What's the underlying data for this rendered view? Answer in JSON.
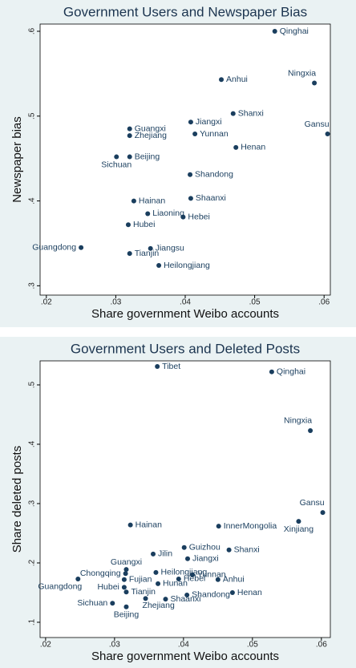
{
  "chart_data": [
    {
      "type": "scatter",
      "title": "Government Users and Newspaper Bias",
      "x_label": "Share government Weibo accounts",
      "y_label": "Newspaper bias",
      "color": "#1a3e5e",
      "xlim": [
        0.0191,
        0.0609
      ],
      "ylim": [
        0.289,
        0.6085
      ],
      "xticks": [
        {
          "value": 0.02,
          "label": ".02"
        },
        {
          "value": 0.03,
          "label": ".03"
        },
        {
          "value": 0.04,
          "label": ".04"
        },
        {
          "value": 0.05,
          "label": ".05"
        },
        {
          "value": 0.06,
          "label": ".06"
        }
      ],
      "yticks": [
        {
          "value": 0.3,
          "label": ".3"
        },
        {
          "value": 0.4,
          "label": ".4"
        },
        {
          "value": 0.5,
          "label": ".5"
        },
        {
          "value": 0.6,
          "label": ".6"
        }
      ],
      "point_labels": [
        "Qinghai",
        "Anhui",
        "Ningxia",
        "Shanxi",
        "Gansu",
        "Jiangxi",
        "Yunnan",
        "Henan",
        "Guangxi",
        "Zhejiang",
        "Beijing",
        "Sichuan",
        "Shandong",
        "Hainan",
        "Shaanxi",
        "Liaoning",
        "Hebei",
        "Hubei",
        "Guangdong",
        "Jiangsu",
        "Tianjin",
        "Heilongjiang"
      ],
      "x": [
        0.0529,
        0.0452,
        0.0586,
        0.0469,
        0.0605,
        0.0408,
        0.0414,
        0.0473,
        0.032,
        0.032,
        0.032,
        0.0301,
        0.0407,
        0.0326,
        0.0408,
        0.0346,
        0.0397,
        0.0318,
        0.025,
        0.035,
        0.032,
        0.0362
      ],
      "values": [
        0.6,
        0.543,
        0.539,
        0.503,
        0.479,
        0.493,
        0.479,
        0.463,
        0.485,
        0.477,
        0.452,
        0.452,
        0.431,
        0.4,
        0.403,
        0.385,
        0.381,
        0.372,
        0.345,
        0.344,
        0.338,
        0.324
      ]
    },
    {
      "type": "scatter",
      "title": "Government Users and Deleted Posts",
      "x_label": "Share government Weibo accounts",
      "y_label": "Share deleted posts",
      "color": "#1a3e5e",
      "xlim": [
        0.0192,
        0.0613
      ],
      "ylim": [
        0.0743,
        0.5405
      ],
      "xticks": [
        {
          "value": 0.02,
          "label": ".02"
        },
        {
          "value": 0.03,
          "label": ".03"
        },
        {
          "value": 0.04,
          "label": ".04"
        },
        {
          "value": 0.05,
          "label": ".05"
        },
        {
          "value": 0.06,
          "label": ".06"
        }
      ],
      "yticks": [
        {
          "value": 0.1,
          "label": ".1"
        },
        {
          "value": 0.2,
          "label": ".2"
        },
        {
          "value": 0.3,
          "label": ".3"
        },
        {
          "value": 0.4,
          "label": ".4"
        },
        {
          "value": 0.5,
          "label": ".5"
        }
      ],
      "point_labels": [
        "Tibet",
        "Qinghai",
        "Ningxia",
        "Gansu",
        "Xinjiang",
        "Hainan",
        "InnerMongolia",
        "Guizhou",
        "Shanxi",
        "Jilin",
        "Jiangxi",
        "Guangxi",
        "Heilongjiang",
        "Chongqing",
        "Yunnan",
        "Hebei",
        "Anhui",
        "Guangdong",
        "Fujian",
        "Hunan",
        "Hubei",
        "Tianjin",
        "Henan",
        "Shandong",
        "Zhejiang",
        "Shaanxi",
        "Sichuan",
        "Beijing"
      ],
      "x": [
        0.0362,
        0.0528,
        0.0584,
        0.0602,
        0.0567,
        0.0323,
        0.0451,
        0.0401,
        0.0466,
        0.0356,
        0.0406,
        0.0317,
        0.036,
        0.0316,
        0.0413,
        0.0393,
        0.045,
        0.0247,
        0.0314,
        0.0363,
        0.0314,
        0.0317,
        0.0471,
        0.0405,
        0.0345,
        0.0374,
        0.0297,
        0.0317
      ],
      "values": [
        0.531,
        0.522,
        0.423,
        0.285,
        0.27,
        0.264,
        0.262,
        0.226,
        0.222,
        0.215,
        0.207,
        0.189,
        0.184,
        0.182,
        0.18,
        0.173,
        0.172,
        0.173,
        0.172,
        0.165,
        0.159,
        0.151,
        0.15,
        0.146,
        0.14,
        0.139,
        0.132,
        0.126
      ]
    }
  ]
}
